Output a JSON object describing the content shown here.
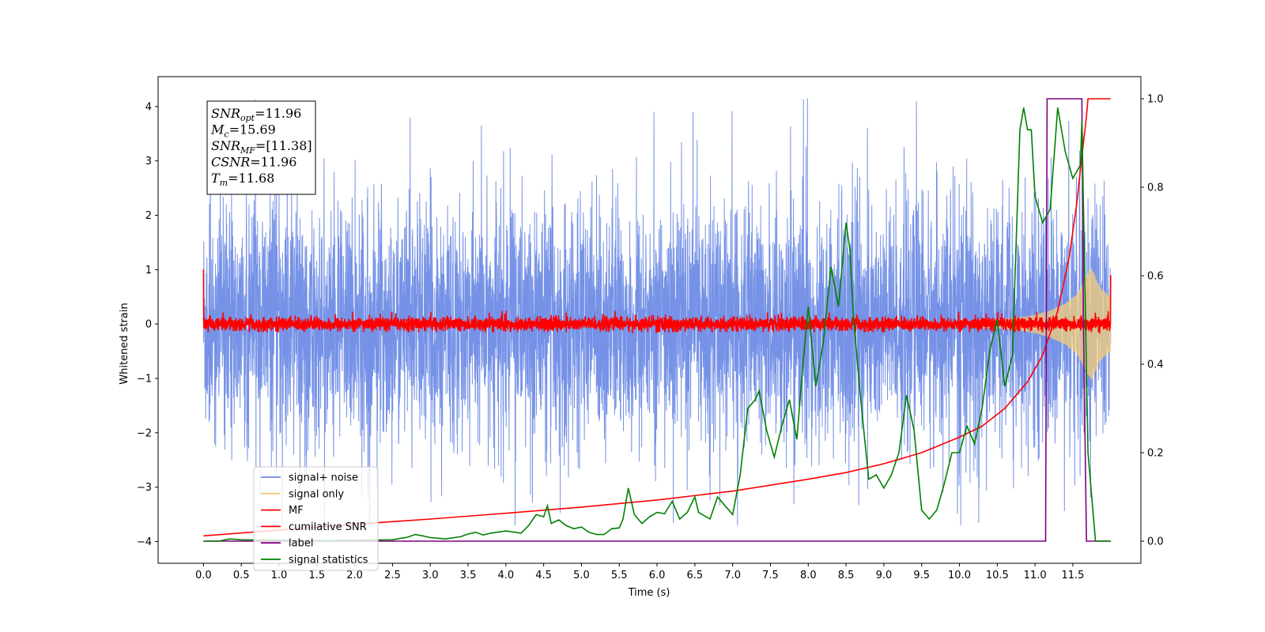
{
  "chart_data": {
    "type": "line",
    "title": "",
    "xlabel": "Time (s)",
    "ylabel": "Whitened strain",
    "xlim": [
      -0.6,
      12.4
    ],
    "ylim": [
      -4.4,
      4.55
    ],
    "ylim_right": [
      -0.05,
      1.05
    ],
    "x_ticks": [
      0.0,
      0.5,
      1.0,
      1.5,
      2.0,
      2.5,
      3.0,
      3.5,
      4.0,
      4.5,
      5.0,
      5.5,
      6.0,
      6.5,
      7.0,
      7.5,
      8.0,
      8.5,
      9.0,
      9.5,
      10.0,
      10.5,
      11.0,
      11.5
    ],
    "x_tick_labels": [
      "0.0",
      "0.5",
      "1.0",
      "1.5",
      "2.0",
      "2.5",
      "3.0",
      "3.5",
      "4.0",
      "4.5",
      "5.0",
      "5.5",
      "6.0",
      "6.5",
      "7.0",
      "7.5",
      "8.0",
      "8.5",
      "9.0",
      "9.5",
      "10.0",
      "10.5",
      "11.0",
      "11.5"
    ],
    "y_ticks": [
      -4,
      -3,
      -2,
      -1,
      0,
      1,
      2,
      3,
      4
    ],
    "y_tick_labels": [
      "−4",
      "−3",
      "−2",
      "−1",
      "0",
      "1",
      "2",
      "3",
      "4"
    ],
    "y_right_ticks": [
      0.0,
      0.2,
      0.4,
      0.6,
      0.8,
      1.0
    ],
    "y_right_tick_labels": [
      "0.0",
      "0.2",
      "0.4",
      "0.6",
      "0.8",
      "1.0"
    ],
    "grid": false,
    "legend_position": "lower-left",
    "annotation": {
      "lines": [
        {
          "main": "SNR",
          "sub": "opt",
          "rest": "=11.96"
        },
        {
          "main": "M",
          "sub": "c",
          "rest": "=15.69"
        },
        {
          "main": "SNR",
          "sub": "MF",
          "rest": "=[11.38]"
        },
        {
          "main": "CSNR",
          "sub": "",
          "rest": "=11.96"
        },
        {
          "main": "T",
          "sub": "m",
          "rest": "=11.68"
        }
      ]
    },
    "series": [
      {
        "name": "signal+ noise",
        "axis": "left",
        "color": "#6f8ce6",
        "style": "noise",
        "x_range": [
          0.0,
          12.0
        ],
        "amplitude": [
          -2.6,
          2.6
        ],
        "peak_max": 4.15,
        "peak_min": -3.7
      },
      {
        "name": "signal only",
        "axis": "left",
        "color": "#f5cd7a",
        "style": "chirp",
        "x_range": [
          10.2,
          12.0
        ],
        "envelope": [
          [
            10.2,
            0.05
          ],
          [
            10.4,
            0.07
          ],
          [
            10.6,
            0.09
          ],
          [
            10.8,
            0.12
          ],
          [
            11.0,
            0.17
          ],
          [
            11.2,
            0.25
          ],
          [
            11.4,
            0.38
          ],
          [
            11.55,
            0.55
          ],
          [
            11.68,
            0.9
          ],
          [
            11.75,
            1.05
          ],
          [
            11.85,
            0.7
          ],
          [
            12.0,
            0.5
          ]
        ]
      },
      {
        "name": "MF",
        "axis": "left",
        "color": "#ff0000",
        "style": "noise",
        "x_range": [
          0.0,
          12.0
        ],
        "amplitude": [
          -0.15,
          0.15
        ],
        "peak_max": 0.28,
        "peak_min": -0.15,
        "start_value": 1.0,
        "end_value": 0.9
      },
      {
        "name": "cumilative SNR",
        "axis": "right",
        "color": "#ff0000",
        "style": "line",
        "points": [
          [
            0.0,
            0.012
          ],
          [
            1.0,
            0.025
          ],
          [
            2.0,
            0.038
          ],
          [
            3.0,
            0.05
          ],
          [
            4.0,
            0.063
          ],
          [
            5.0,
            0.077
          ],
          [
            6.0,
            0.093
          ],
          [
            7.0,
            0.113
          ],
          [
            8.0,
            0.14
          ],
          [
            8.5,
            0.155
          ],
          [
            9.0,
            0.175
          ],
          [
            9.5,
            0.2
          ],
          [
            10.0,
            0.235
          ],
          [
            10.3,
            0.26
          ],
          [
            10.6,
            0.3
          ],
          [
            10.9,
            0.36
          ],
          [
            11.1,
            0.42
          ],
          [
            11.3,
            0.52
          ],
          [
            11.45,
            0.64
          ],
          [
            11.55,
            0.76
          ],
          [
            11.62,
            0.87
          ],
          [
            11.68,
            0.96
          ],
          [
            11.7,
            1.0
          ],
          [
            12.0,
            1.0
          ]
        ]
      },
      {
        "name": "label",
        "axis": "right",
        "color": "#800080",
        "style": "line",
        "points": [
          [
            0.0,
            0.0
          ],
          [
            11.14,
            0.0
          ],
          [
            11.16,
            1.0
          ],
          [
            11.62,
            1.0
          ],
          [
            11.64,
            0.5
          ],
          [
            11.68,
            0.0
          ],
          [
            12.0,
            0.0
          ]
        ]
      },
      {
        "name": "signal statistics",
        "axis": "right",
        "color": "#008000",
        "style": "line",
        "points": [
          [
            0.0,
            0.0
          ],
          [
            0.2,
            0.0
          ],
          [
            0.35,
            0.005
          ],
          [
            0.5,
            0.003
          ],
          [
            1.0,
            0.002
          ],
          [
            1.5,
            0.001
          ],
          [
            2.0,
            0.002
          ],
          [
            2.5,
            0.003
          ],
          [
            2.6,
            0.006
          ],
          [
            2.7,
            0.009
          ],
          [
            2.8,
            0.015
          ],
          [
            2.9,
            0.012
          ],
          [
            3.0,
            0.008
          ],
          [
            3.2,
            0.005
          ],
          [
            3.4,
            0.01
          ],
          [
            3.5,
            0.016
          ],
          [
            3.6,
            0.02
          ],
          [
            3.7,
            0.014
          ],
          [
            3.8,
            0.018
          ],
          [
            4.0,
            0.023
          ],
          [
            4.2,
            0.018
          ],
          [
            4.3,
            0.035
          ],
          [
            4.4,
            0.06
          ],
          [
            4.5,
            0.055
          ],
          [
            4.55,
            0.08
          ],
          [
            4.6,
            0.04
          ],
          [
            4.7,
            0.048
          ],
          [
            4.8,
            0.035
          ],
          [
            4.9,
            0.028
          ],
          [
            5.0,
            0.032
          ],
          [
            5.1,
            0.02
          ],
          [
            5.2,
            0.015
          ],
          [
            5.3,
            0.015
          ],
          [
            5.4,
            0.028
          ],
          [
            5.5,
            0.03
          ],
          [
            5.55,
            0.05
          ],
          [
            5.62,
            0.12
          ],
          [
            5.7,
            0.06
          ],
          [
            5.8,
            0.04
          ],
          [
            5.9,
            0.055
          ],
          [
            6.0,
            0.065
          ],
          [
            6.1,
            0.062
          ],
          [
            6.2,
            0.09
          ],
          [
            6.3,
            0.05
          ],
          [
            6.4,
            0.065
          ],
          [
            6.5,
            0.1
          ],
          [
            6.55,
            0.065
          ],
          [
            6.7,
            0.05
          ],
          [
            6.8,
            0.1
          ],
          [
            6.9,
            0.08
          ],
          [
            7.0,
            0.06
          ],
          [
            7.1,
            0.15
          ],
          [
            7.2,
            0.3
          ],
          [
            7.3,
            0.32
          ],
          [
            7.35,
            0.34
          ],
          [
            7.45,
            0.25
          ],
          [
            7.55,
            0.19
          ],
          [
            7.65,
            0.26
          ],
          [
            7.75,
            0.32
          ],
          [
            7.85,
            0.23
          ],
          [
            7.92,
            0.38
          ],
          [
            8.0,
            0.53
          ],
          [
            8.1,
            0.35
          ],
          [
            8.2,
            0.45
          ],
          [
            8.3,
            0.62
          ],
          [
            8.4,
            0.53
          ],
          [
            8.5,
            0.72
          ],
          [
            8.55,
            0.66
          ],
          [
            8.6,
            0.5
          ],
          [
            8.7,
            0.31
          ],
          [
            8.8,
            0.14
          ],
          [
            8.9,
            0.15
          ],
          [
            9.0,
            0.12
          ],
          [
            9.1,
            0.15
          ],
          [
            9.2,
            0.2
          ],
          [
            9.3,
            0.33
          ],
          [
            9.4,
            0.25
          ],
          [
            9.5,
            0.07
          ],
          [
            9.6,
            0.05
          ],
          [
            9.7,
            0.07
          ],
          [
            9.8,
            0.13
          ],
          [
            9.9,
            0.2
          ],
          [
            10.0,
            0.2
          ],
          [
            10.1,
            0.26
          ],
          [
            10.2,
            0.22
          ],
          [
            10.3,
            0.3
          ],
          [
            10.4,
            0.43
          ],
          [
            10.5,
            0.5
          ],
          [
            10.6,
            0.35
          ],
          [
            10.7,
            0.42
          ],
          [
            10.8,
            0.93
          ],
          [
            10.85,
            0.98
          ],
          [
            10.9,
            0.93
          ],
          [
            10.95,
            0.93
          ],
          [
            11.0,
            0.78
          ],
          [
            11.1,
            0.72
          ],
          [
            11.2,
            0.75
          ],
          [
            11.3,
            0.98
          ],
          [
            11.4,
            0.88
          ],
          [
            11.5,
            0.82
          ],
          [
            11.6,
            0.85
          ],
          [
            11.62,
            0.95
          ],
          [
            11.7,
            0.2
          ],
          [
            11.8,
            0.0
          ],
          [
            12.0,
            0.0
          ]
        ]
      }
    ]
  },
  "legend": {
    "items": [
      {
        "label": "signal+ noise",
        "color": "#6f8ce6"
      },
      {
        "label": "signal only",
        "color": "#f5cd7a"
      },
      {
        "label": "MF",
        "color": "#ff0000"
      },
      {
        "label": "cumilative SNR",
        "color": "#ff0000"
      },
      {
        "label": "label",
        "color": "#800080"
      },
      {
        "label": "signal statistics",
        "color": "#008000"
      }
    ]
  }
}
